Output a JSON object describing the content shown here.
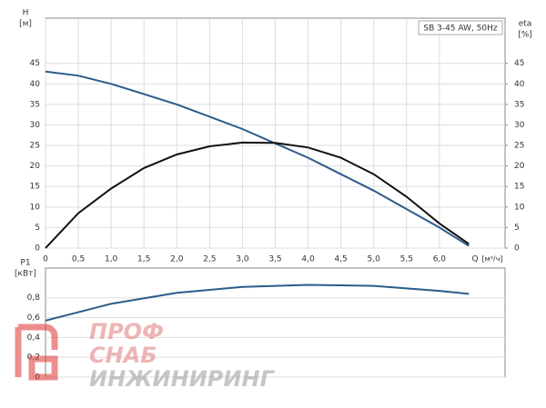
{
  "chart_data": [
    {
      "type": "line",
      "y_label": "H",
      "y_unit": "[м]",
      "y2_label": "eta",
      "y2_unit": "[%]",
      "x_label": "Q",
      "x_unit": "[м³/ч]",
      "legend_text": "SB 3-45 AW, 50Hz",
      "grid": true,
      "xlim": [
        0,
        7
      ],
      "xticks": [
        0,
        {
          "value": 0.5,
          "label": "0,5"
        },
        {
          "value": 1,
          "label": "1,0"
        },
        {
          "value": 1.5,
          "label": "1,5"
        },
        {
          "value": 2,
          "label": "2,0"
        },
        {
          "value": 2.5,
          "label": "2,5"
        },
        {
          "value": 3,
          "label": "3,0"
        },
        {
          "value": 3.5,
          "label": "3,5"
        },
        {
          "value": 4,
          "label": "4,0"
        },
        {
          "value": 4.5,
          "label": "4,5"
        },
        {
          "value": 5,
          "label": "5,0"
        },
        {
          "value": 5.5,
          "label": "5,5"
        },
        {
          "value": 6,
          "label": "6,0"
        }
      ],
      "ylim": [
        0,
        56
      ],
      "yticks": [
        0,
        5,
        10,
        15,
        20,
        25,
        30,
        35,
        40,
        45
      ],
      "y2lim": [
        0,
        56
      ],
      "y2ticks": [
        0,
        5,
        10,
        15,
        20,
        25,
        30,
        35,
        40,
        45
      ],
      "x": [
        0,
        0.5,
        1,
        1.5,
        2,
        2.5,
        3,
        3.5,
        4,
        4.5,
        5,
        5.5,
        6,
        6.45
      ],
      "series": [
        {
          "color": "#2a5b8c",
          "values": [
            43,
            42,
            40,
            37.5,
            35,
            32,
            29,
            25.5,
            22,
            18,
            14,
            9.5,
            5,
            0.5
          ]
        },
        {
          "color": "#111111",
          "axis": "y2",
          "values": [
            0,
            8.5,
            14.5,
            19.5,
            22.8,
            24.8,
            25.7,
            25.6,
            24.5,
            22,
            18,
            12.5,
            6,
            1
          ]
        }
      ]
    },
    {
      "type": "line",
      "y_label": "P1",
      "y_unit": "[кВт]",
      "grid": true,
      "xlim": [
        0,
        7
      ],
      "ylim": [
        0,
        1.1
      ],
      "yticks": [
        0,
        {
          "value": 0.2,
          "label": "0,2"
        },
        {
          "value": 0.4,
          "label": "0,4"
        },
        {
          "value": 0.6,
          "label": "0,6"
        },
        {
          "value": 0.8,
          "label": "0,8"
        }
      ],
      "x": [
        0,
        1,
        2,
        3,
        4,
        5,
        6,
        6.45
      ],
      "series": [
        {
          "color": "#2a5b8c",
          "values": [
            0.57,
            0.74,
            0.85,
            0.91,
            0.93,
            0.92,
            0.87,
            0.84
          ]
        }
      ]
    }
  ],
  "watermark": {
    "line1": "ПРОФ",
    "line2": "СНАБ",
    "line3": "ИНЖИНИРИНГ"
  }
}
